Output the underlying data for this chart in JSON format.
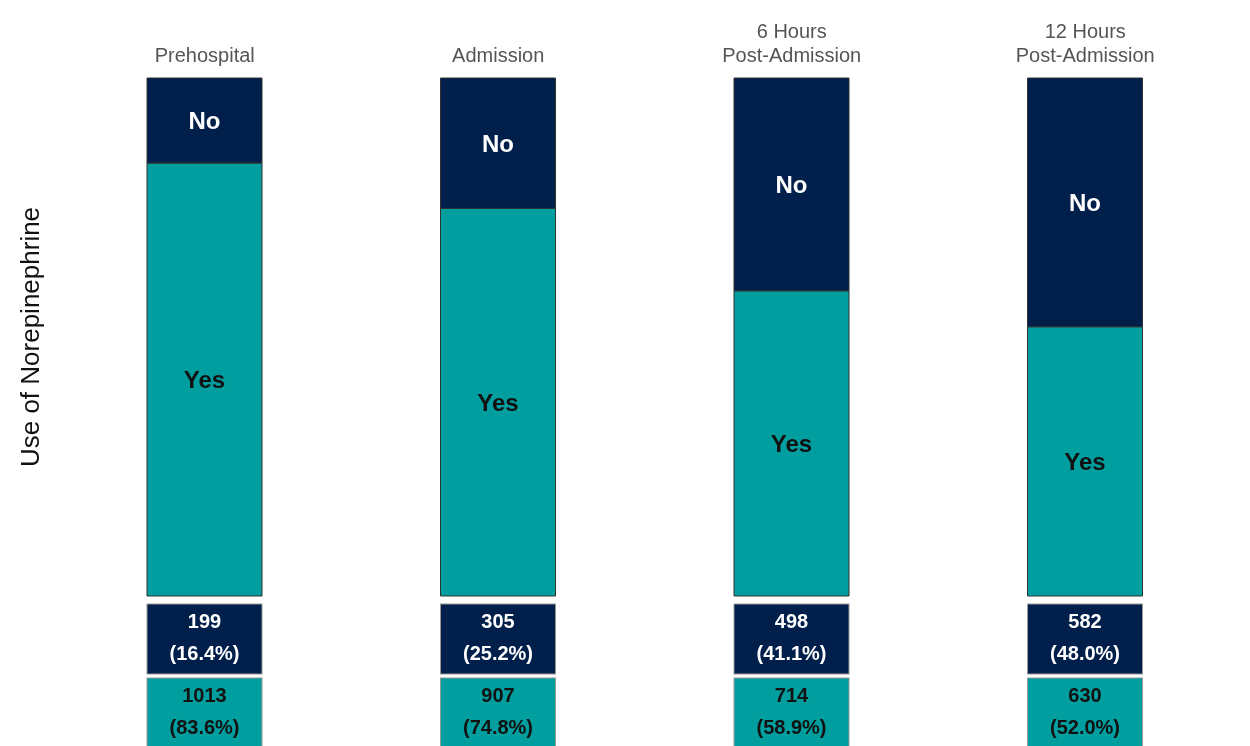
{
  "chart_data": {
    "type": "bar",
    "stacked": true,
    "ylabel": "Use of Norepinephrine",
    "categories": [
      "Prehospital",
      "Admission",
      "6 Hours Post-Admission",
      "12 Hours Post-Admission"
    ],
    "series": [
      {
        "name": "Yes",
        "color": "#009e9e",
        "values": [
          1013,
          907,
          714,
          630
        ],
        "value_labels": [
          "1013\n(83.6%)",
          "907\n(74.8%)",
          "714\n(58.9%)",
          "630\n(52.0%)"
        ]
      },
      {
        "name": "No",
        "color": "#001f4b",
        "values": [
          199,
          305,
          498,
          582
        ],
        "value_labels": [
          "199\n(16.4%)",
          "305\n(25.2%)",
          "498\n(41.1%)",
          "582\n(48.0%)"
        ]
      }
    ],
    "legend": false,
    "grid": false
  }
}
